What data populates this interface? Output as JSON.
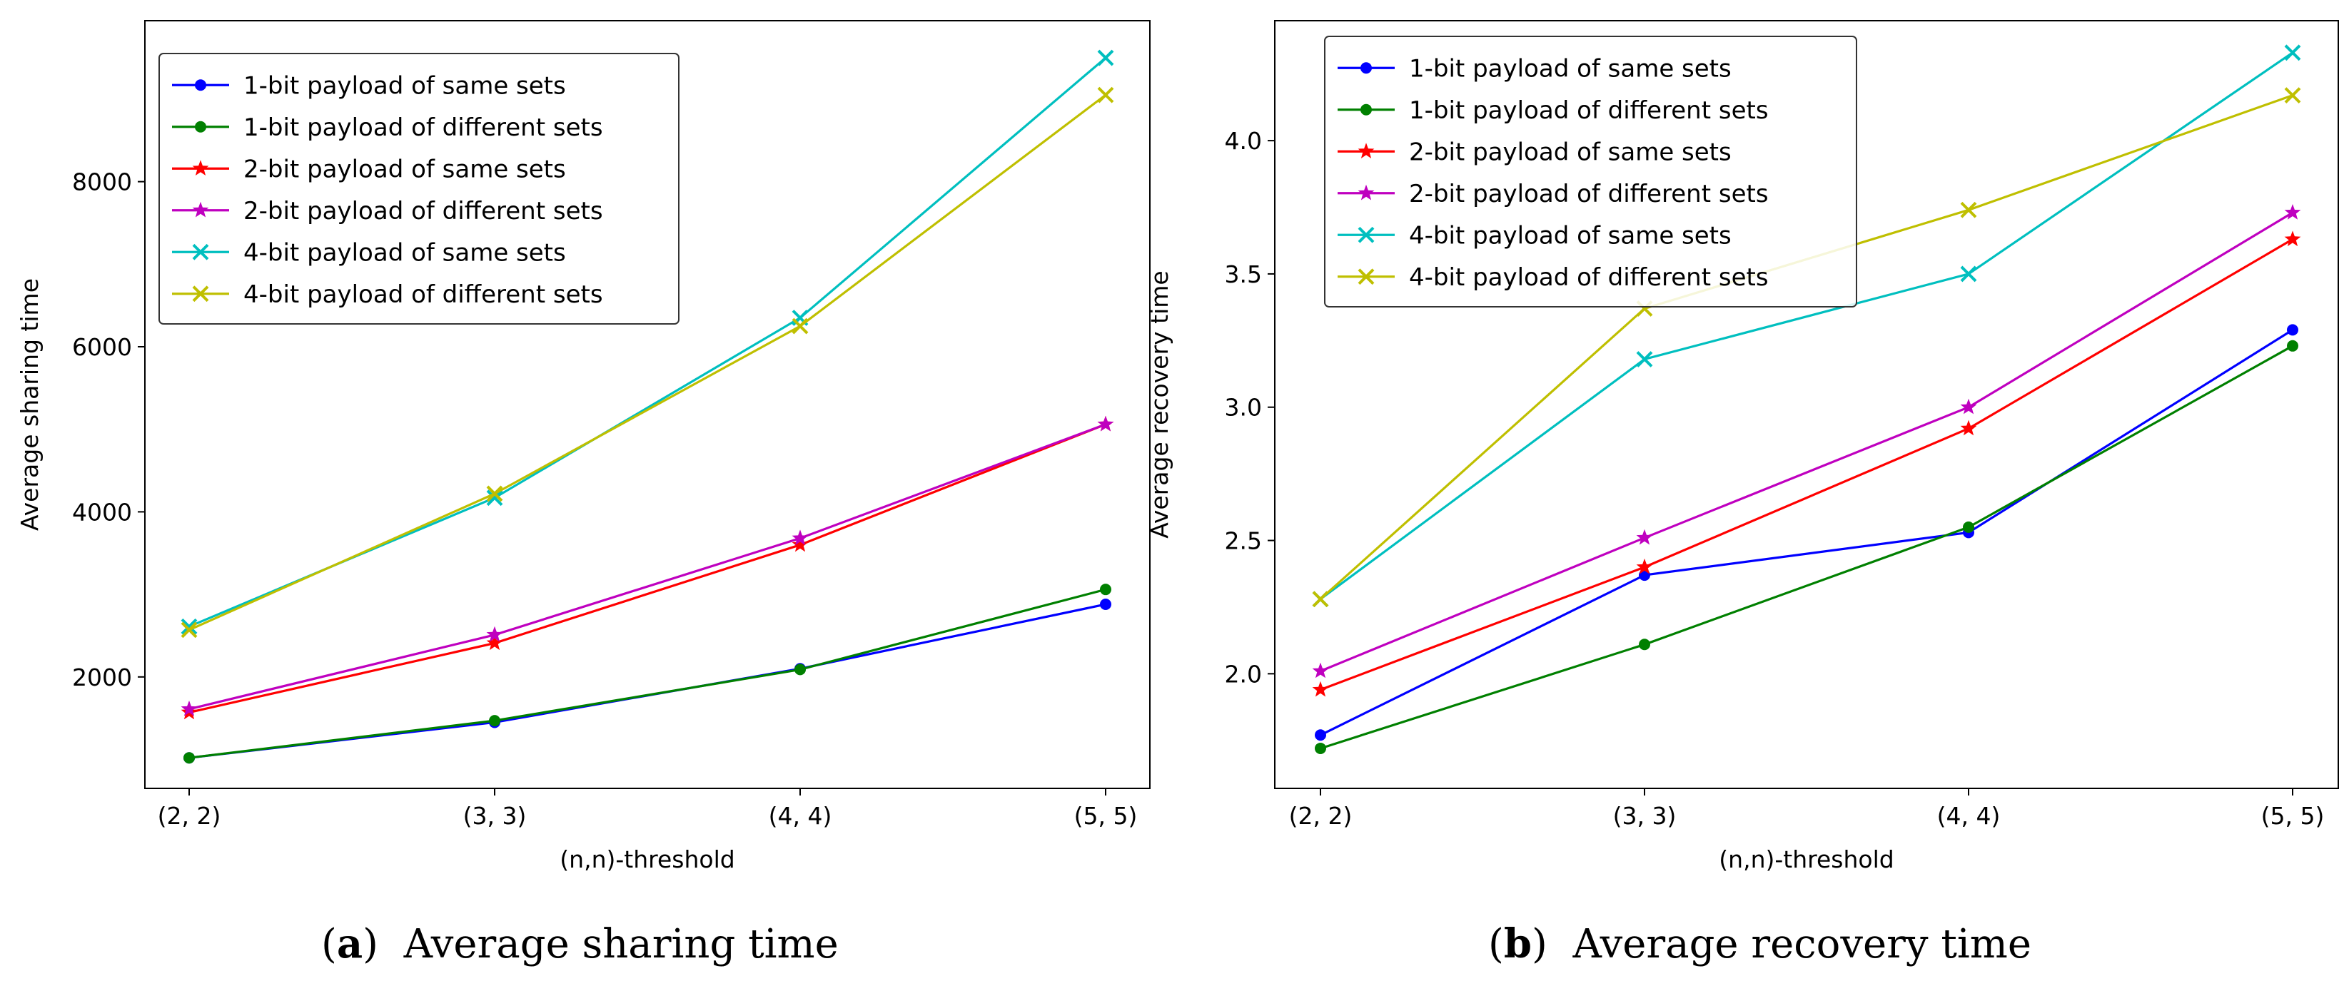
{
  "captions": [
    {
      "letter": "a",
      "text": "Average sharing time"
    },
    {
      "letter": "b",
      "text": "Average recovery time"
    }
  ],
  "chart_data": [
    {
      "type": "line",
      "xlabel": "(n,n)-threshold",
      "ylabel": "Average sharing time",
      "categories": [
        "(2, 2)",
        "(3, 3)",
        "(4, 4)",
        "(5, 5)"
      ],
      "ylim": [
        650,
        9950
      ],
      "yticks": [
        2000,
        4000,
        6000,
        8000
      ],
      "grid": false,
      "legend_position": "top-left",
      "series": [
        {
          "name": "1-bit payload of same sets",
          "color": "#0000ff",
          "marker": "dot",
          "values": [
            1020,
            1450,
            2100,
            2880
          ]
        },
        {
          "name": "1-bit payload of different sets",
          "color": "#008000",
          "marker": "dot",
          "values": [
            1020,
            1470,
            2090,
            3060
          ]
        },
        {
          "name": "2-bit payload of same sets",
          "color": "#ff0000",
          "marker": "star",
          "values": [
            1570,
            2410,
            3600,
            5060
          ]
        },
        {
          "name": "2-bit payload of different sets",
          "color": "#bf00bf",
          "marker": "star",
          "values": [
            1610,
            2510,
            3680,
            5060
          ]
        },
        {
          "name": "4-bit payload of same sets",
          "color": "#00bfbf",
          "marker": "x",
          "values": [
            2610,
            4170,
            6350,
            9500
          ]
        },
        {
          "name": "4-bit payload of different sets",
          "color": "#bfbf00",
          "marker": "x",
          "values": [
            2570,
            4220,
            6250,
            9050
          ]
        }
      ]
    },
    {
      "type": "line",
      "xlabel": "(n,n)-threshold",
      "ylabel": "Average recovery time",
      "categories": [
        "(2, 2)",
        "(3, 3)",
        "(4, 4)",
        "(5, 5)"
      ],
      "ylim": [
        1.57,
        4.45
      ],
      "yticks": [
        "2.0",
        "2.5",
        "3.0",
        "3.5",
        "4.0"
      ],
      "grid": false,
      "legend_position": "top-left",
      "series": [
        {
          "name": "1-bit payload of same sets",
          "color": "#0000ff",
          "marker": "dot",
          "values": [
            1.77,
            2.37,
            2.53,
            3.29
          ]
        },
        {
          "name": "1-bit payload of different sets",
          "color": "#008000",
          "marker": "dot",
          "values": [
            1.72,
            2.11,
            2.55,
            3.23
          ]
        },
        {
          "name": "2-bit payload of same sets",
          "color": "#ff0000",
          "marker": "star",
          "values": [
            1.94,
            2.4,
            2.92,
            3.63
          ]
        },
        {
          "name": "2-bit payload of different sets",
          "color": "#bf00bf",
          "marker": "star",
          "values": [
            2.01,
            2.51,
            3.0,
            3.73
          ]
        },
        {
          "name": "4-bit payload of same sets",
          "color": "#00bfbf",
          "marker": "x",
          "values": [
            2.28,
            3.18,
            3.5,
            4.33
          ]
        },
        {
          "name": "4-bit payload of different sets",
          "color": "#bfbf00",
          "marker": "x",
          "values": [
            2.28,
            3.37,
            3.74,
            4.17
          ]
        }
      ]
    }
  ]
}
